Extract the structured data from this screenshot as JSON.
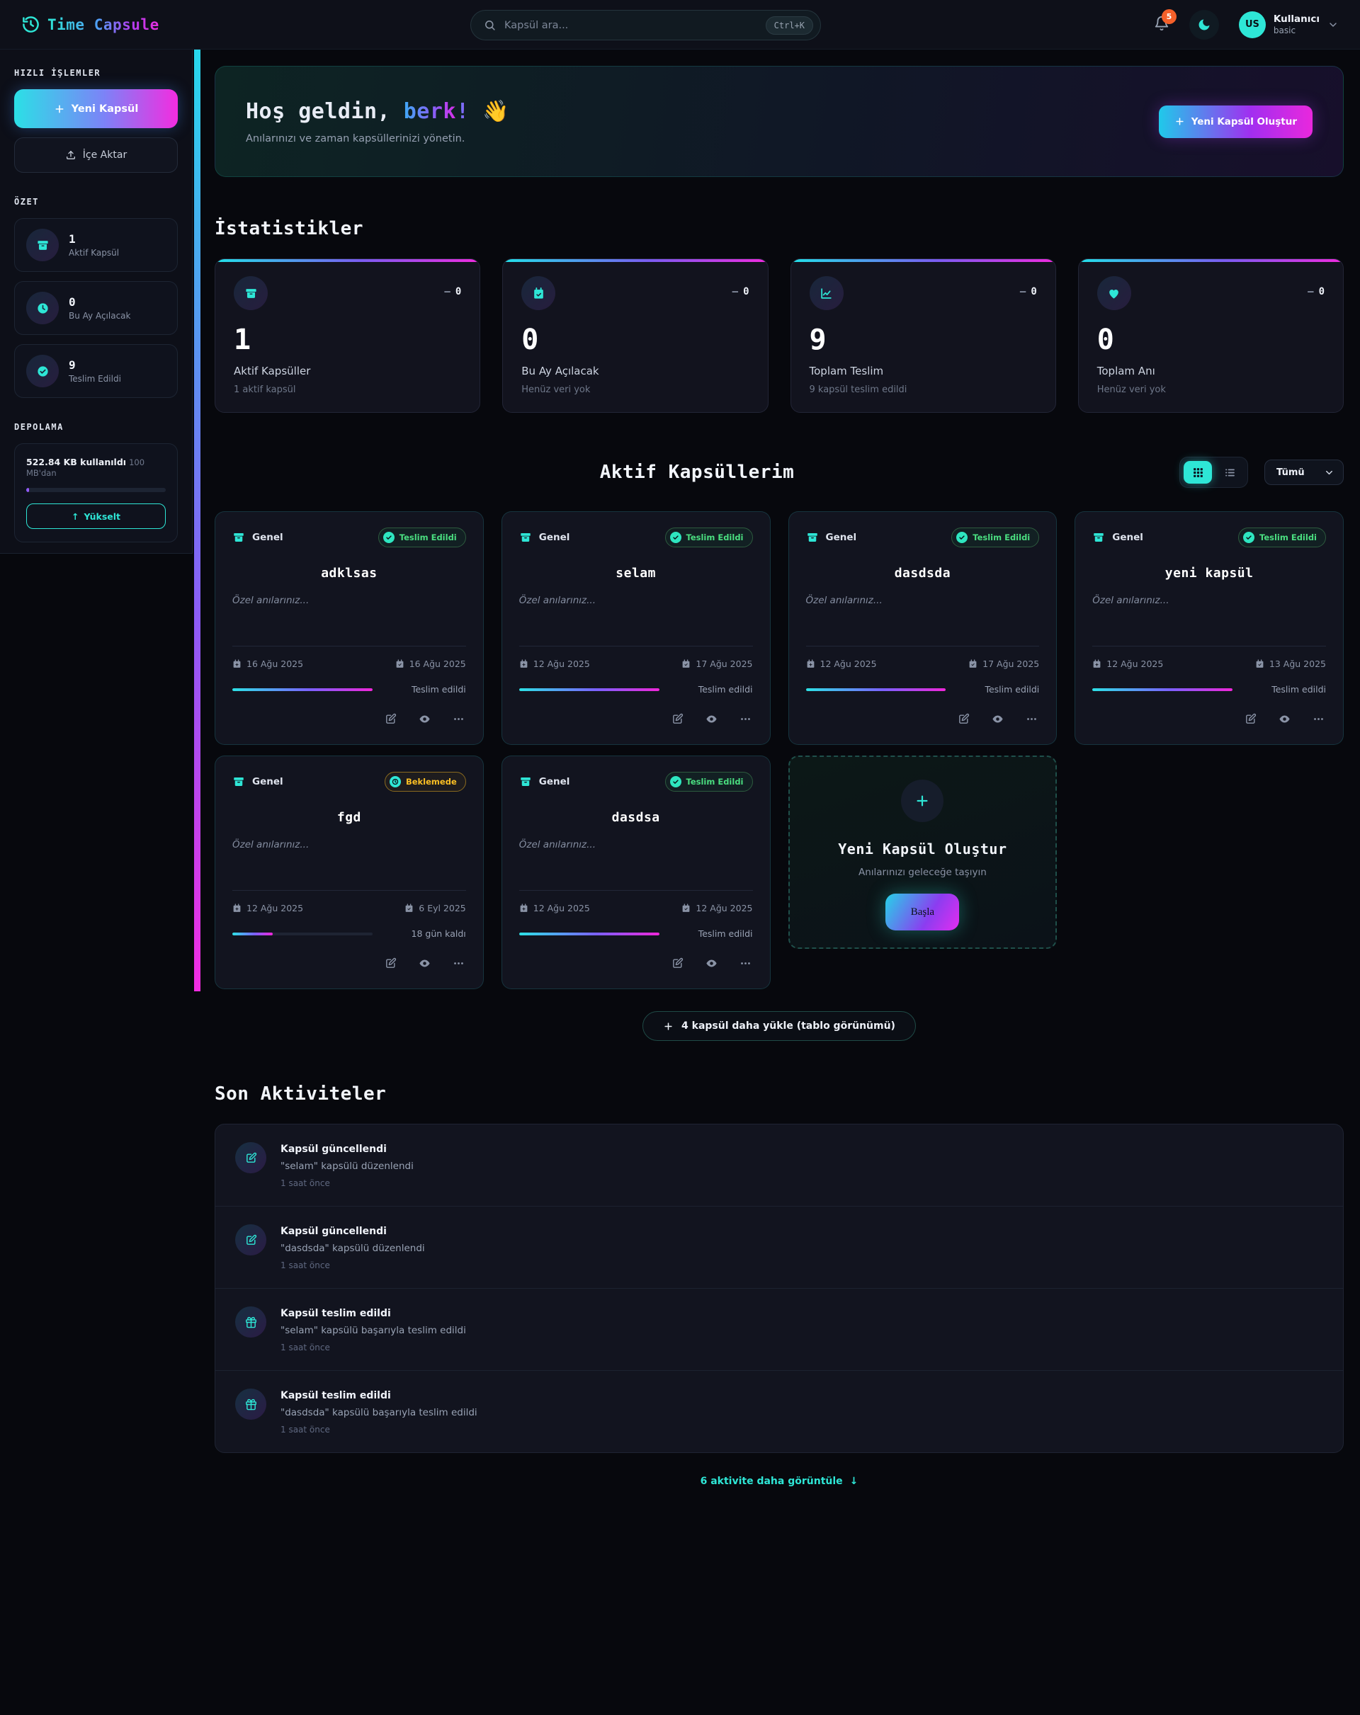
{
  "header": {
    "logo_text": "Time Capsule",
    "search_placeholder": "Kapsül ara...",
    "search_shortcut": "Ctrl+K",
    "notification_count": "5",
    "avatar_initials": "US",
    "user_name": "Kullanıcı",
    "user_plan": "basic"
  },
  "sidebar": {
    "quick_actions_title": "HIZLI İŞLEMLER",
    "new_capsule_label": "Yeni Kapsül",
    "import_label": "İçe Aktar",
    "summary_title": "ÖZET",
    "summary": [
      {
        "value": "1",
        "label": "Aktif Kapsül"
      },
      {
        "value": "0",
        "label": "Bu Ay Açılacak"
      },
      {
        "value": "9",
        "label": "Teslim Edildi"
      }
    ],
    "storage_title": "DEPOLAMA",
    "storage_used": "522.84 KB kullanıldı",
    "storage_limit": "100 MB'dan",
    "storage_percent": 2,
    "upgrade_arrow": "↑",
    "upgrade_label": "Yükselt"
  },
  "banner": {
    "greeting": "Hoş geldin,",
    "name": "berk",
    "exclamation": "!",
    "emoji": "👋",
    "subtitle": "Anılarınızı ve zaman kapsüllerinizi yönetin.",
    "cta_label": "Yeni Kapsül Oluştur"
  },
  "stats": {
    "title": "İstatistikler",
    "cards": [
      {
        "icon": "capsule-box",
        "trend_dash": "—",
        "trend_value": "0",
        "value": "1",
        "label": "Aktif Kapsüller",
        "sub": "1 aktif kapsül"
      },
      {
        "icon": "calendar-check",
        "trend_dash": "—",
        "trend_value": "0",
        "value": "0",
        "label": "Bu Ay Açılacak",
        "sub": "Henüz veri yok"
      },
      {
        "icon": "chart-line",
        "trend_dash": "—",
        "trend_value": "0",
        "value": "9",
        "label": "Toplam Teslim",
        "sub": "9 kapsül teslim edildi"
      },
      {
        "icon": "heart",
        "trend_dash": "—",
        "trend_value": "0",
        "value": "0",
        "label": "Toplam Anı",
        "sub": "Henüz veri yok"
      }
    ]
  },
  "capsules": {
    "title": "Aktif Kapsüllerim",
    "filter_value": "Tümü",
    "cards": [
      {
        "category": "Genel",
        "status": "Teslim Edildi",
        "status_type": "delivered",
        "title": "adklsas",
        "description": "Özel anılarınız...",
        "date_start": "16 Ağu 2025",
        "date_end": "16 Ağu 2025",
        "progress": 100,
        "progress_label": "Teslim edildi"
      },
      {
        "category": "Genel",
        "status": "Teslim Edildi",
        "status_type": "delivered",
        "title": "selam",
        "description": "Özel anılarınız...",
        "date_start": "12 Ağu 2025",
        "date_end": "17 Ağu 2025",
        "progress": 100,
        "progress_label": "Teslim edildi"
      },
      {
        "category": "Genel",
        "status": "Teslim Edildi",
        "status_type": "delivered",
        "title": "dasdsda",
        "description": "Özel anılarınız...",
        "date_start": "12 Ağu 2025",
        "date_end": "17 Ağu 2025",
        "progress": 100,
        "progress_label": "Teslim edildi"
      },
      {
        "category": "Genel",
        "status": "Teslim Edildi",
        "status_type": "delivered",
        "title": "yeni kapsül",
        "description": "Özel anılarınız...",
        "date_start": "12 Ağu 2025",
        "date_end": "13 Ağu 2025",
        "progress": 100,
        "progress_label": "Teslim edildi"
      },
      {
        "category": "Genel",
        "status": "Beklemede",
        "status_type": "pending",
        "title": "fgd",
        "description": "Özel anılarınız...",
        "date_start": "12 Ağu 2025",
        "date_end": "6 Eyl 2025",
        "progress": 29,
        "progress_label": "18 gün kaldı"
      },
      {
        "category": "Genel",
        "status": "Teslim Edildi",
        "status_type": "delivered",
        "title": "dasdsa",
        "description": "Özel anılarınız...",
        "date_start": "12 Ağu 2025",
        "date_end": "12 Ağu 2025",
        "progress": 100,
        "progress_label": "Teslim edildi"
      }
    ],
    "create": {
      "title": "Yeni Kapsül Oluştur",
      "subtitle": "Anılarınızı geleceğe taşıyın",
      "button_label": "Başla"
    },
    "load_more_label": "4 kapsül daha yükle (tablo görünümü)"
  },
  "activities": {
    "title": "Son Aktiviteler",
    "items": [
      {
        "icon": "edit",
        "title": "Kapsül güncellendi",
        "description": "\"selam\" kapsülü düzenlendi",
        "time": "1 saat önce"
      },
      {
        "icon": "edit",
        "title": "Kapsül güncellendi",
        "description": "\"dasdsda\" kapsülü düzenlendi",
        "time": "1 saat önce"
      },
      {
        "icon": "gift",
        "title": "Kapsül teslim edildi",
        "description": "\"selam\" kapsülü başarıyla teslim edildi",
        "time": "1 saat önce"
      },
      {
        "icon": "gift",
        "title": "Kapsül teslim edildi",
        "description": "\"dasdsda\" kapsülü başarıyla teslim edildi",
        "time": "1 saat önce"
      }
    ],
    "more_label": "6 aktivite daha görüntüle",
    "more_arrow": "↓"
  },
  "colors": {
    "accent_cyan": "#2ee6d6",
    "accent_magenta": "#f02ad9",
    "accent_violet": "#7b61ff",
    "status_green": "#4ade80",
    "status_yellow": "#fbbf24",
    "notification_orange": "#f4602a"
  }
}
